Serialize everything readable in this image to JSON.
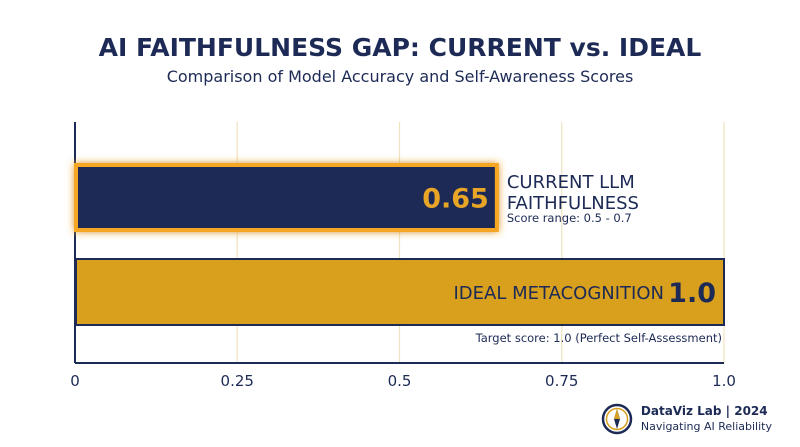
{
  "chart_data": {
    "type": "bar",
    "orientation": "horizontal",
    "title": "AI FAITHFULNESS GAP: CURRENT vs. IDEAL",
    "subtitle": "Comparison of Model Accuracy and Self-Awareness Scores",
    "categories": [
      "CURRENT LLM FAITHFULNESS",
      "IDEAL METACOGNITION"
    ],
    "category_lines": [
      [
        "CURRENT LLM",
        "FAITHFULNESS"
      ],
      [
        "IDEAL METACOGNITION"
      ]
    ],
    "values": [
      0.65,
      1.0
    ],
    "value_labels": [
      "0.65",
      "1.0"
    ],
    "annotations": [
      "Score range: 0.5 - 0.7",
      "Target score: 1.0 (Perfect Self-Assessment)"
    ],
    "xlim": [
      0,
      1
    ],
    "xticks": [
      0,
      0.25,
      0.5,
      0.75,
      1.0
    ],
    "xtick_labels": [
      "0",
      "0.25",
      "0.5",
      "0.75",
      "1.0"
    ],
    "grid": true,
    "colors": {
      "current_bar": "#1c2a55",
      "current_glow": "#f5a623",
      "ideal_bar": "#d9a01e",
      "text": "#1c2a55",
      "value_current": "#e8a526",
      "grid": "#efe2bf"
    }
  },
  "footer": {
    "brand": "DataViz Lab | 2024",
    "tagline": "Navigating AI Reliability",
    "icon": "compass-icon"
  }
}
